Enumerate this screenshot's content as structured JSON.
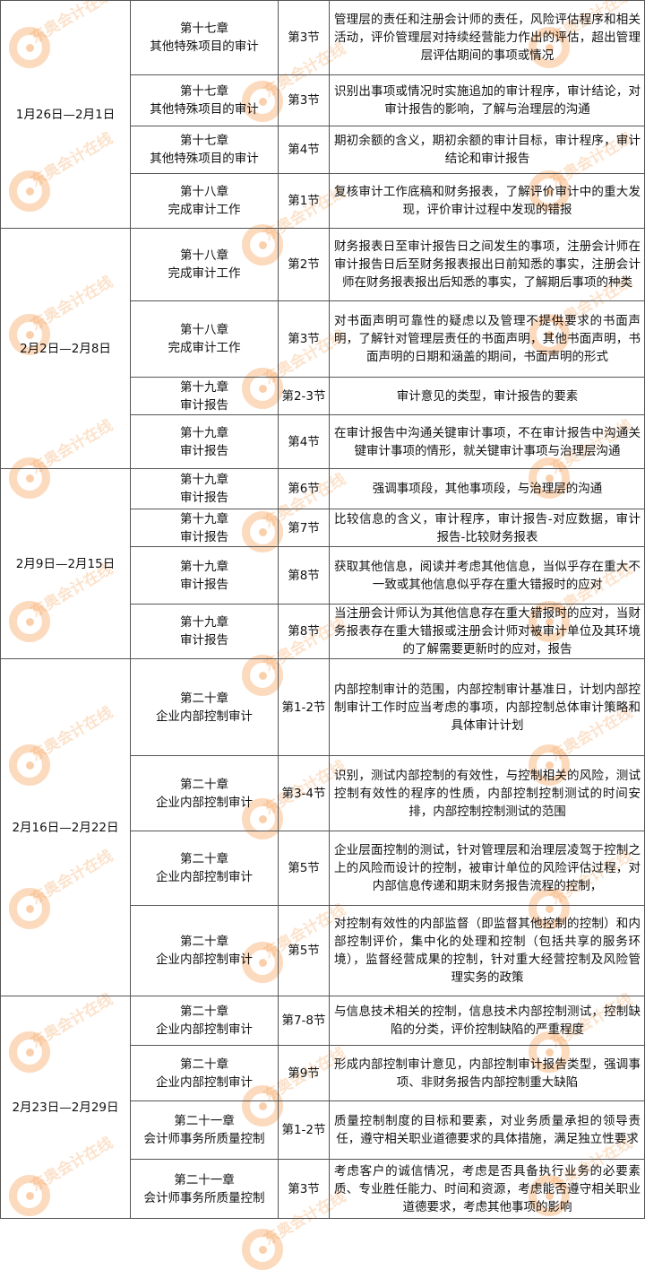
{
  "watermark": "东奥会计在线",
  "accent_color": "#f59646",
  "groups": [
    {
      "date": "1月26日—2月1日",
      "rows": [
        {
          "chapter": "第十七章",
          "chapter_title": "其他特殊项目的审计",
          "section": "第3节",
          "content": "管理层的责任和注册会计师的责任，风险评估程序和相关活动，评价管理层对持续经营能力作出的评估，超出管理层评估期间的事项或情况"
        },
        {
          "chapter": "第十七章",
          "chapter_title": "其他特殊项目的审计",
          "section": "第3节",
          "content": "识别出事项或情况时实施追加的审计程序，审计结论，对审计报告的影响，了解与治理层的沟通"
        },
        {
          "chapter": "第十七章",
          "chapter_title": "其他特殊项目的审计",
          "section": "第4节",
          "content": "期初余额的含义，期初余额的审计目标，审计程序，审计结论和审计报告"
        },
        {
          "chapter": "第十八章",
          "chapter_title": "完成审计工作",
          "section": "第1节",
          "content": "复核审计工作底稿和财务报表，了解评价审计中的重大发现，评价审计过程中发现的错报"
        }
      ]
    },
    {
      "date": "2月2日—2月8日",
      "rows": [
        {
          "chapter": "第十八章",
          "chapter_title": "完成审计工作",
          "section": "第2节",
          "content": "财务报表日至审计报告日之间发生的事项，注册会计师在审计报告日后至财务报表报出日前知悉的事实，注册会计师在财务报表报出后知悉的事实，了解期后事项的种类"
        },
        {
          "chapter": "第十八章",
          "chapter_title": "完成审计工作",
          "section": "第3节",
          "content": "对书面声明可靠性的疑虑以及管理不提供要求的书面声明，了解针对管理层责任的书面声明，其他书面声明，书面声明的日期和涵盖的期间，书面声明的形式"
        },
        {
          "chapter": "第十九章",
          "chapter_title": "审计报告",
          "section": "第2-3节",
          "content": "审计意见的类型，审计报告的要素"
        },
        {
          "chapter": "第十九章",
          "chapter_title": "审计报告",
          "section": "第4节",
          "content": "在审计报告中沟通关键审计事项，不在审计报告中沟通关键审计事项的情形，就关键审计事项与治理层沟通"
        }
      ]
    },
    {
      "date": "2月9日—2月15日",
      "rows": [
        {
          "chapter": "第十九章",
          "chapter_title": "审计报告",
          "section": "第6节",
          "content": "强调事项段，其他事项段，与治理层的沟通"
        },
        {
          "chapter": "第十九章",
          "chapter_title": "审计报告",
          "section": "第7节",
          "content": "比较信息的含义，审计程序，审计报告-对应数据，审计报告-比较财务报表"
        },
        {
          "chapter": "第十九章",
          "chapter_title": "审计报告",
          "section": "第8节",
          "content": "获取其他信息，阅读并考虑其他信息，当似乎存在重大不一致或其他信息似乎存在重大错报时的应对"
        },
        {
          "chapter": "第十九章",
          "chapter_title": "审计报告",
          "section": "第8节",
          "content": "当注册会计师认为其他信息存在重大错报时的应对，当财务报表存在重大错报或注册会计师对被审计单位及其环境的了解需要更新时的应对，报告"
        }
      ]
    },
    {
      "date": "2月16日—2月22日",
      "rows": [
        {
          "chapter": "第二十章",
          "chapter_title": "企业内部控制审计",
          "section": "第1-2节",
          "content": "内部控制审计的范围，内部控制审计基准日，计划内部控制审计工作时应当考虑的事项，内部控制总体审计策略和具体审计计划"
        },
        {
          "chapter": "第二十章",
          "chapter_title": "企业内部控制审计",
          "section": "第3-4节",
          "content": "识别，测试内部控制的有效性，与控制相关的风险，测试控制有效性的程序的性质，内部控制控制测试的时间安排，内部控制控制测试的范围"
        },
        {
          "chapter": "第二十章",
          "chapter_title": "企业内部控制审计",
          "section": "第5节",
          "content": "企业层面控制的测试，针对管理层和治理层凌驾于控制之上的风险而设计的控制，被审计单位的风险评估过程，对内部信息传递和期末财务报告流程的控制，"
        },
        {
          "chapter": "第二十章",
          "chapter_title": "企业内部控制审计",
          "section": "第5节",
          "content": "对控制有效性的内部监督（即监督其他控制的控制）和内部控制评价，集中化的处理和控制（包括共享的服务环境），监督经营成果的控制，针对重大经营控制及风险管理实务的政策"
        }
      ]
    },
    {
      "date": "2月23日—2月29日",
      "rows": [
        {
          "chapter": "第二十章",
          "chapter_title": "企业内部控制审计",
          "section": "第7-8节",
          "content": "与信息技术相关的控制，信息技术内部控制测试，控制缺陷的分类，评价控制缺陷的严重程度"
        },
        {
          "chapter": "第二十章",
          "chapter_title": "企业内部控制审计",
          "section": "第9节",
          "content": "形成内部控制审计意见，内部控制审计报告类型，强调事项、非财务报告内部控制重大缺陷"
        },
        {
          "chapter": "第二十一章",
          "chapter_title": "会计师事务所质量控制",
          "section": "第1-2节",
          "content": "质量控制制度的目标和要素，对业务质量承担的领导责任，遵守相关职业道德要求的具体措施，满足独立性要求"
        },
        {
          "chapter": "第二十一章",
          "chapter_title": "会计师事务所质量控制",
          "section": "第3节",
          "content": "考虑客户的诚信情况，考虑是否具备执行业务的必要素质、专业胜任能力、时间和资源，考虑能否遵守相关职业道德要求，考虑其他事项的影响"
        }
      ]
    }
  ]
}
